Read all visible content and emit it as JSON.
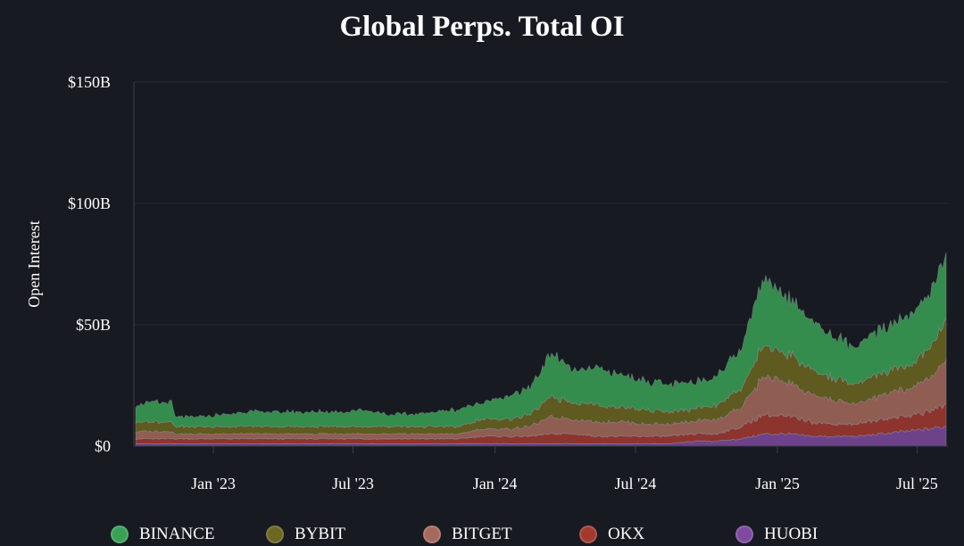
{
  "chart_data": {
    "type": "area",
    "stacked": true,
    "title": "Global Perps. Total OI",
    "ylabel": "Open Interest",
    "xlabel": "",
    "ylim": [
      0,
      150
    ],
    "y_unit": "$B",
    "y_ticks": [
      {
        "value": 0,
        "label": "$0"
      },
      {
        "value": 50,
        "label": "$50B"
      },
      {
        "value": 100,
        "label": "$100B"
      },
      {
        "value": 150,
        "label": "$150B"
      }
    ],
    "x_ticks": [
      {
        "date": "2023-01-01",
        "label": "Jan '23"
      },
      {
        "date": "2023-07-01",
        "label": "Jul '23"
      },
      {
        "date": "2024-01-01",
        "label": "Jan '24"
      },
      {
        "date": "2024-07-01",
        "label": "Jul '24"
      },
      {
        "date": "2025-01-01",
        "label": "Jan '25"
      },
      {
        "date": "2025-07-01",
        "label": "Jul '25"
      }
    ],
    "xlim": [
      "2022-09-20",
      "2025-08-10"
    ],
    "grid": true,
    "legend_position": "bottom",
    "x": [
      "2022-09-20",
      "2022-10-15",
      "2022-11-08",
      "2022-11-12",
      "2022-12-15",
      "2023-01-15",
      "2023-02-15",
      "2023-03-15",
      "2023-04-15",
      "2023-05-15",
      "2023-06-15",
      "2023-07-15",
      "2023-08-15",
      "2023-09-15",
      "2023-10-15",
      "2023-11-15",
      "2023-12-15",
      "2024-01-15",
      "2024-02-15",
      "2024-03-15",
      "2024-04-15",
      "2024-05-15",
      "2024-06-15",
      "2024-07-15",
      "2024-08-15",
      "2024-09-15",
      "2024-10-15",
      "2024-11-15",
      "2024-12-15",
      "2025-01-15",
      "2025-02-15",
      "2025-03-15",
      "2025-04-15",
      "2025-05-15",
      "2025-06-15",
      "2025-07-15",
      "2025-08-05"
    ],
    "series": [
      {
        "name": "BINANCE",
        "color": "#39a155",
        "values": [
          7,
          8,
          8,
          4,
          4,
          5,
          6,
          6,
          6,
          6,
          6,
          7,
          5,
          5,
          6,
          7,
          7,
          9,
          11,
          18,
          13,
          15,
          13,
          12,
          11,
          11,
          12,
          17,
          28,
          24,
          20,
          17,
          15,
          18,
          20,
          22,
          28
        ]
      },
      {
        "name": "BYBIT",
        "color": "#6b6620",
        "values": [
          4,
          4,
          4,
          3,
          3,
          3,
          3,
          3,
          3,
          3,
          3,
          3,
          3,
          3,
          3,
          3,
          4,
          4,
          5,
          8,
          7,
          7,
          6,
          6,
          5,
          5,
          6,
          8,
          13,
          12,
          10,
          9,
          8,
          9,
          9,
          12,
          16
        ]
      },
      {
        "name": "BITGET",
        "color": "#a66a5c",
        "values": [
          3,
          3,
          3,
          2,
          2,
          2,
          2,
          2,
          2,
          2,
          2,
          2,
          2,
          2,
          2,
          2,
          3,
          3,
          4,
          7,
          6,
          6,
          6,
          5,
          5,
          5,
          6,
          8,
          16,
          14,
          11,
          10,
          8,
          10,
          11,
          13,
          18
        ]
      },
      {
        "name": "OKX",
        "color": "#a23a30",
        "values": [
          2,
          2,
          2,
          2,
          2,
          2,
          2,
          2,
          2,
          2,
          2,
          2,
          2,
          2,
          2,
          2,
          3,
          3,
          3,
          4,
          4,
          3,
          3,
          3,
          3,
          3,
          3,
          5,
          8,
          7,
          6,
          5,
          5,
          6,
          6,
          7,
          9
        ]
      },
      {
        "name": "HUOBI",
        "color": "#7e4a9e",
        "values": [
          1,
          1,
          1,
          1,
          1,
          1,
          1,
          1,
          1,
          1,
          1,
          1,
          1,
          1,
          1,
          1,
          1,
          1,
          1,
          1,
          1,
          1,
          1,
          1,
          1,
          2,
          2,
          3,
          5,
          5,
          4,
          4,
          4,
          5,
          6,
          7,
          8
        ]
      }
    ]
  }
}
